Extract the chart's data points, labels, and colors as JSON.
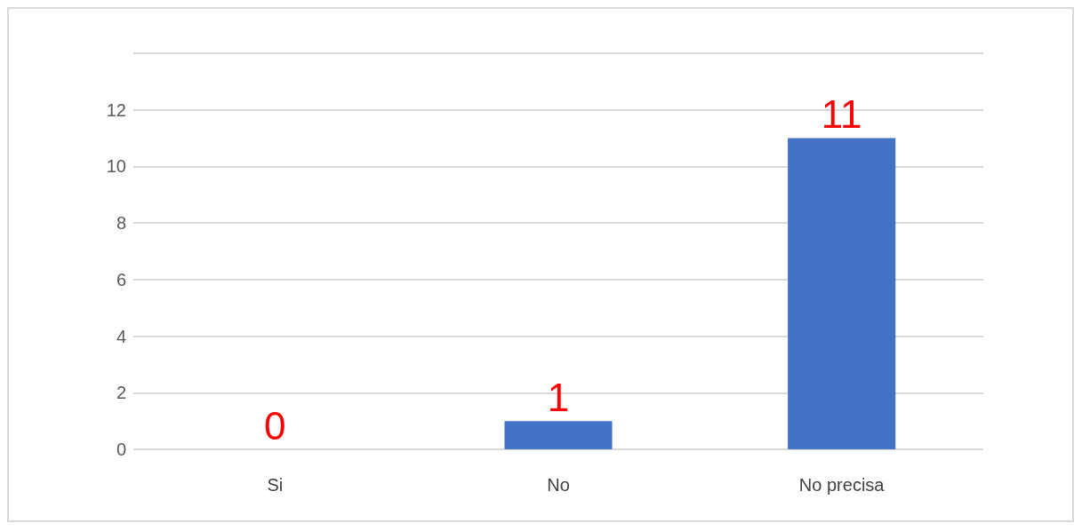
{
  "chart_data": {
    "type": "bar",
    "categories": [
      "Si",
      "No",
      "No precisa"
    ],
    "values": [
      0,
      1,
      11
    ],
    "color": "#4472c4",
    "ylim": [
      0,
      14
    ],
    "yticks": [
      0,
      2,
      4,
      6,
      8,
      10,
      12,
      {
        "value": 14,
        "label": null
      }
    ],
    "grid": "y",
    "data_labels": true
  }
}
